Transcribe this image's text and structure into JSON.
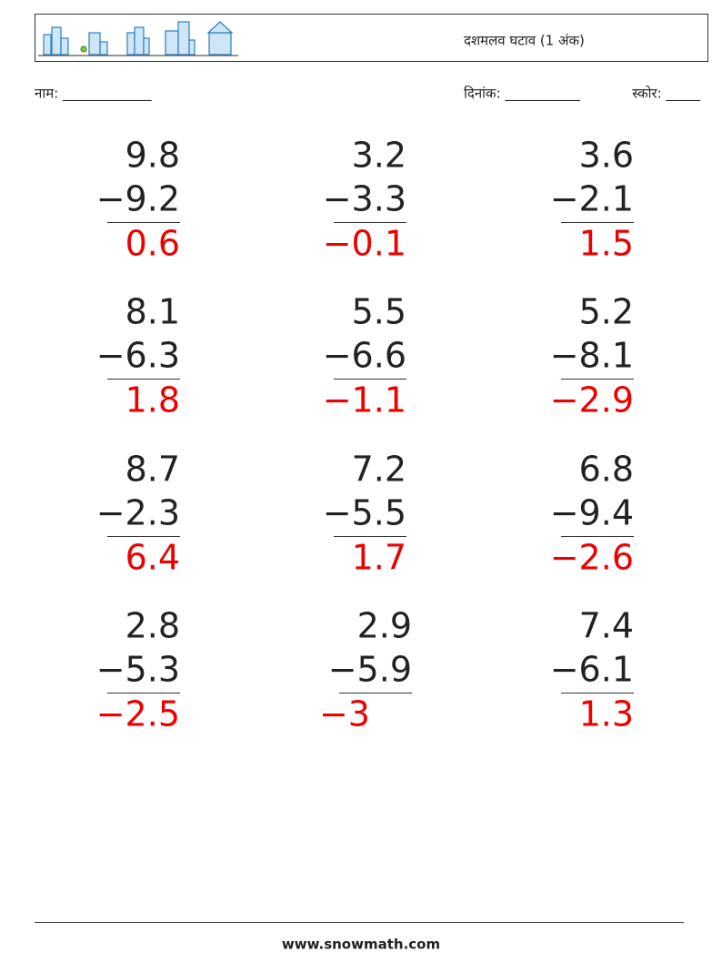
{
  "header": {
    "title": "दशमलव घटाव (1 अंक)"
  },
  "fields": {
    "name": "नाम: _____________",
    "date": "दिनांक: ___________",
    "score": "स्कोर: _____"
  },
  "problems": [
    {
      "a": "9.8",
      "b": "−9.2",
      "answer": "0.6"
    },
    {
      "a": "3.2",
      "b": "−3.3",
      "answer": "−0.1"
    },
    {
      "a": "3.6",
      "b": "−2.1",
      "answer": "1.5"
    },
    {
      "a": "8.1",
      "b": "−6.3",
      "answer": "1.8"
    },
    {
      "a": "5.5",
      "b": "−6.6",
      "answer": "−1.1"
    },
    {
      "a": "5.2",
      "b": "−8.1",
      "answer": "−2.9"
    },
    {
      "a": "8.7",
      "b": "−2.3",
      "answer": "6.4"
    },
    {
      "a": "7.2",
      "b": "−5.5",
      "answer": "1.7"
    },
    {
      "a": "6.8",
      "b": "−9.4",
      "answer": "−2.6"
    },
    {
      "a": "2.8",
      "b": "−5.3",
      "answer": "−2.5"
    },
    {
      "a": "2.9",
      "b": "−5.9",
      "answer": "−3"
    },
    {
      "a": "7.4",
      "b": "−6.1",
      "answer": "1.3"
    }
  ],
  "footer": {
    "url": "www.snowmath.com"
  }
}
